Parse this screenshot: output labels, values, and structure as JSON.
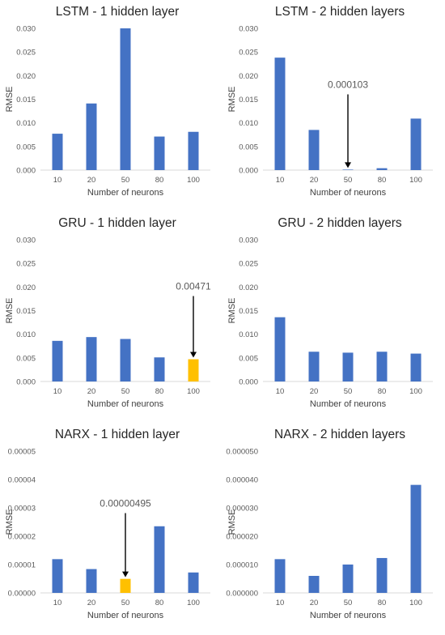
{
  "colors": {
    "bar": "#4472c4",
    "highlight": "#ffc000",
    "axis": "#d9d9d9",
    "arrow": "#000000"
  },
  "chart_data": [
    {
      "type": "bar",
      "title": "LSTM - 1 hidden layer",
      "xlabel": "Number of neurons",
      "ylabel": "RMSE",
      "categories": [
        "10",
        "20",
        "50",
        "80",
        "100"
      ],
      "values": [
        0.0077,
        0.0141,
        0.03,
        0.0071,
        0.0081
      ],
      "ylim": [
        0,
        0.03
      ],
      "yticks": [
        "0.000",
        "0.005",
        "0.010",
        "0.015",
        "0.020",
        "0.025",
        "0.030"
      ],
      "highlight_index": null,
      "annotation": null
    },
    {
      "type": "bar",
      "title": "LSTM - 2 hidden layers",
      "xlabel": "Number of neurons",
      "ylabel": "RMSE",
      "categories": [
        "10",
        "20",
        "50",
        "80",
        "100"
      ],
      "values": [
        0.0238,
        0.0085,
        0.000103,
        0.0004,
        0.0109
      ],
      "ylim": [
        0,
        0.03
      ],
      "yticks": [
        "0.000",
        "0.005",
        "0.010",
        "0.015",
        "0.020",
        "0.025",
        "0.030"
      ],
      "highlight_index": null,
      "annotation": {
        "text": "0.000103",
        "index": 2
      }
    },
    {
      "type": "bar",
      "title": "GRU - 1 hidden layer",
      "xlabel": "Number of neurons",
      "ylabel": "RMSE",
      "categories": [
        "10",
        "20",
        "50",
        "80",
        "100"
      ],
      "values": [
        0.0086,
        0.0094,
        0.009,
        0.0051,
        0.00471
      ],
      "ylim": [
        0,
        0.03
      ],
      "yticks": [
        "0.000",
        "0.005",
        "0.010",
        "0.015",
        "0.020",
        "0.025",
        "0.030"
      ],
      "highlight_index": 4,
      "annotation": {
        "text": "0.00471",
        "index": 4
      }
    },
    {
      "type": "bar",
      "title": "GRU - 2 hidden layers",
      "xlabel": "Number of neurons",
      "ylabel": "RMSE",
      "categories": [
        "10",
        "20",
        "50",
        "80",
        "100"
      ],
      "values": [
        0.0136,
        0.0063,
        0.0061,
        0.0063,
        0.0059
      ],
      "ylim": [
        0,
        0.03
      ],
      "yticks": [
        "0.000",
        "0.005",
        "0.010",
        "0.015",
        "0.020",
        "0.025",
        "0.030"
      ],
      "highlight_index": null,
      "annotation": null
    },
    {
      "type": "bar",
      "title": "NARX - 1 hidden layer",
      "xlabel": "Number of neurons",
      "ylabel": "RMSE",
      "categories": [
        "10",
        "20",
        "50",
        "80",
        "100"
      ],
      "values": [
        1.19e-05,
        8.4e-06,
        4.95e-06,
        2.35e-05,
        7.2e-06
      ],
      "ylim": [
        0,
        5e-05
      ],
      "yticks": [
        "0.00000",
        "0.00001",
        "0.00002",
        "0.00003",
        "0.00004",
        "0.00005"
      ],
      "highlight_index": 2,
      "annotation": {
        "text": "0.00000495",
        "index": 2
      }
    },
    {
      "type": "bar",
      "title": "NARX - 2 hidden layers",
      "xlabel": "Number of neurons",
      "ylabel": "RMSE",
      "categories": [
        "10",
        "20",
        "50",
        "80",
        "100"
      ],
      "values": [
        1.19e-05,
        6e-06,
        1e-05,
        1.23e-05,
        3.81e-05
      ],
      "ylim": [
        0,
        5e-05
      ],
      "yticks": [
        "0.000000",
        "0.000010",
        "0.000020",
        "0.000030",
        "0.000040",
        "0.000050"
      ],
      "highlight_index": null,
      "annotation": null
    }
  ]
}
